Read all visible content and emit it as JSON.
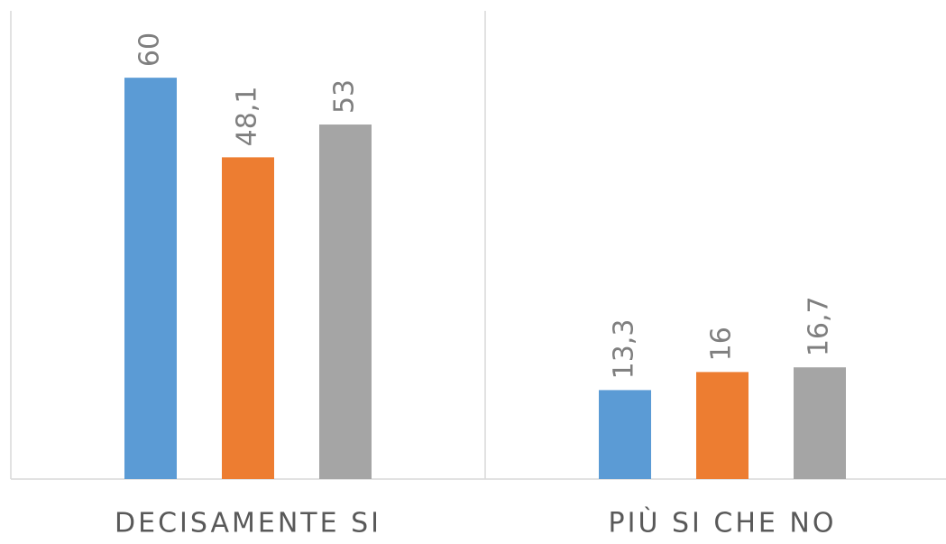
{
  "chart_data": {
    "type": "bar",
    "categories": [
      "DECISAMENTE SI",
      "PIÙ SI CHE NO"
    ],
    "series": [
      {
        "color": "#5b9bd5",
        "values": [
          60,
          13.3
        ],
        "value_labels": [
          "60",
          "13,3"
        ]
      },
      {
        "color": "#ed7d31",
        "values": [
          48.1,
          16
        ],
        "value_labels": [
          "48,1",
          "16"
        ]
      },
      {
        "color": "#a5a5a5",
        "values": [
          53,
          16.7
        ],
        "value_labels": [
          "53",
          "16,7"
        ]
      }
    ],
    "ylim": [
      0,
      70
    ]
  }
}
